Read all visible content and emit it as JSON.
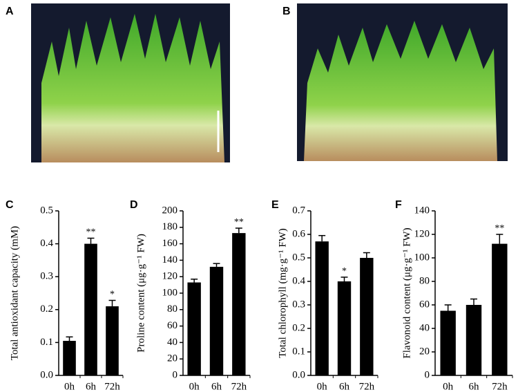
{
  "photo_panels": [
    {
      "label": "A"
    },
    {
      "label": "B"
    }
  ],
  "chart_data": [
    {
      "type": "bar",
      "panel_label": "C",
      "ylabel": "Total antioxidant capacity (mM)",
      "categories": [
        "0h",
        "6h",
        "72h"
      ],
      "values": [
        0.105,
        0.4,
        0.21
      ],
      "errors": [
        0.012,
        0.017,
        0.018
      ],
      "significance": [
        null,
        "**",
        "*"
      ],
      "color": "#000000",
      "ylim": [
        0,
        0.5
      ],
      "yticks": [
        {
          "value": 0,
          "label": "0.0"
        },
        0.1,
        0.2,
        0.3,
        0.4,
        0.5
      ]
    },
    {
      "type": "bar",
      "panel_label": "D",
      "ylabel": "Proline content (μg·g⁻¹ FW)",
      "categories": [
        "0h",
        "6h",
        "72h"
      ],
      "values": [
        113,
        132,
        173
      ],
      "errors": [
        4,
        4,
        6
      ],
      "significance": [
        null,
        null,
        "**"
      ],
      "color": "#000000",
      "ylim": [
        0,
        200
      ],
      "yticks": [
        0,
        20,
        40,
        60,
        80,
        100,
        120,
        140,
        160,
        180,
        200
      ]
    },
    {
      "type": "bar",
      "panel_label": "E",
      "ylabel": "Total chlorophyll (mg·g⁻¹ FW)",
      "categories": [
        "0h",
        "6h",
        "72h"
      ],
      "values": [
        0.57,
        0.4,
        0.5
      ],
      "errors": [
        0.025,
        0.018,
        0.022
      ],
      "significance": [
        null,
        "*",
        null
      ],
      "color": "#000000",
      "ylim": [
        0,
        0.7
      ],
      "yticks": [
        {
          "value": 0,
          "label": "0.0"
        },
        0.1,
        0.2,
        0.3,
        0.4,
        0.5,
        0.6,
        0.7
      ]
    },
    {
      "type": "bar",
      "panel_label": "F",
      "ylabel": "Flavonoid content (μg·g⁻¹ FW)",
      "categories": [
        "0h",
        "6h",
        "72h"
      ],
      "values": [
        55,
        60,
        112
      ],
      "errors": [
        5,
        5,
        8
      ],
      "significance": [
        null,
        null,
        "**"
      ],
      "color": "#000000",
      "ylim": [
        0,
        140
      ],
      "yticks": [
        0,
        20,
        40,
        60,
        80,
        100,
        120,
        140
      ]
    }
  ]
}
